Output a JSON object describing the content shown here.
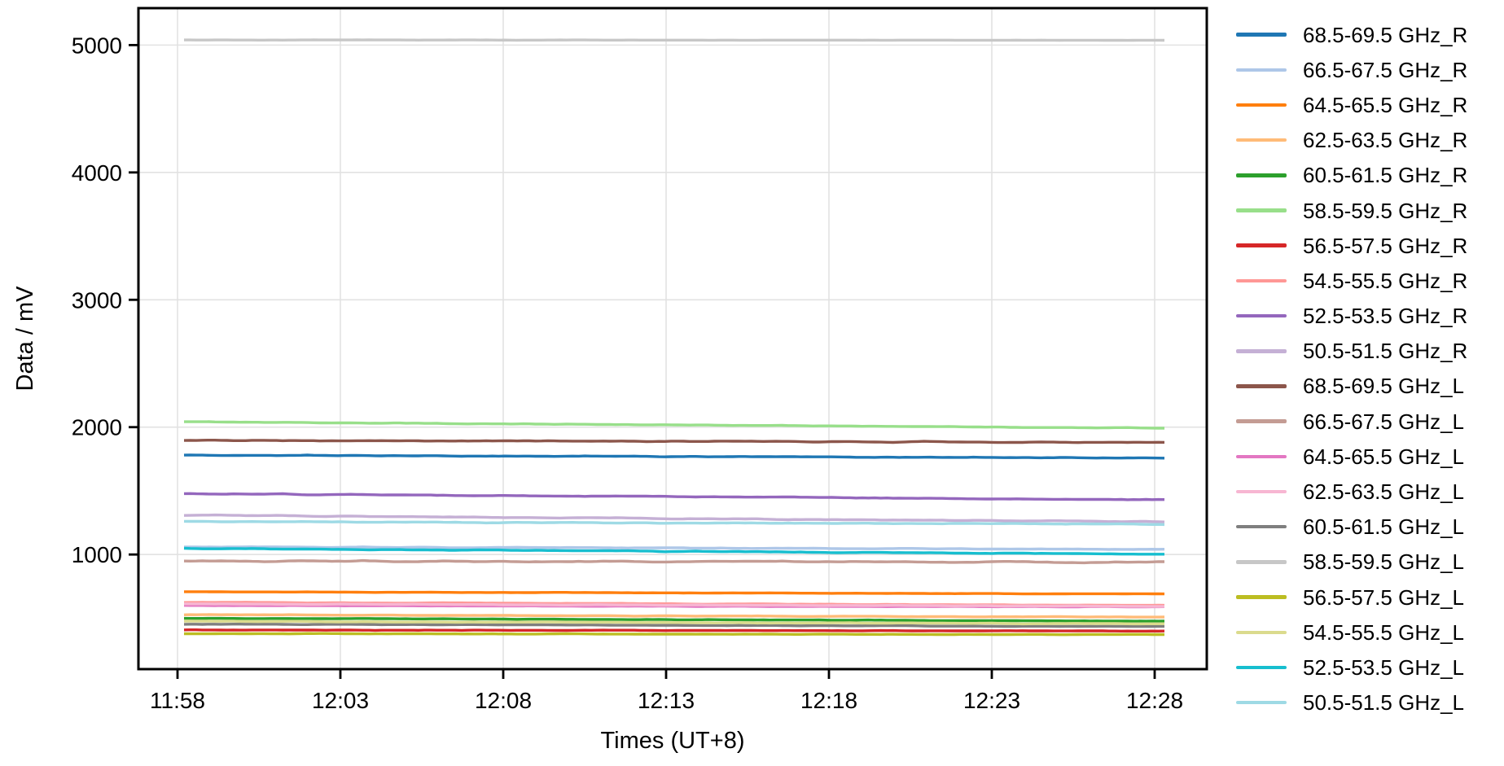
{
  "chart_data": {
    "type": "line",
    "title": "",
    "xlabel": "Times (UT+8)",
    "ylabel": "Data / mV",
    "grid": true,
    "legend_position": "right-outside",
    "x_tick_labels": [
      "11:58",
      "12:03",
      "12:08",
      "12:13",
      "12:18",
      "12:23",
      "12:28"
    ],
    "x_tick_minutes": [
      58,
      63,
      68,
      73,
      78,
      83,
      88
    ],
    "xlim_minutes": [
      56.8,
      89.6
    ],
    "x_data_range_minutes": [
      58.2,
      88.3
    ],
    "y_ticks": [
      1000,
      2000,
      3000,
      4000,
      5000
    ],
    "y_tick_labels": [
      "1000",
      "2000",
      "3000",
      "4000",
      "5000"
    ],
    "ylim": [
      100,
      5290
    ],
    "series": [
      {
        "name": "68.5-69.5 GHz_R",
        "color": "#1f77b4",
        "values_mV": {
          "start": 1780,
          "end": 1758
        }
      },
      {
        "name": "66.5-67.5 GHz_R",
        "color": "#aec7e8",
        "values_mV": {
          "start": 1062,
          "end": 1040
        }
      },
      {
        "name": "64.5-65.5 GHz_R",
        "color": "#ff7f0e",
        "values_mV": {
          "start": 707,
          "end": 690
        }
      },
      {
        "name": "62.5-63.5 GHz_R",
        "color": "#ffbb78",
        "values_mV": {
          "start": 528,
          "end": 508
        }
      },
      {
        "name": "60.5-61.5 GHz_R",
        "color": "#2ca02c",
        "values_mV": {
          "start": 500,
          "end": 477
        }
      },
      {
        "name": "58.5-59.5 GHz_R",
        "color": "#98df8a",
        "values_mV": {
          "start": 2042,
          "end": 1992
        }
      },
      {
        "name": "56.5-57.5 GHz_R",
        "color": "#d62728",
        "values_mV": {
          "start": 408,
          "end": 399
        }
      },
      {
        "name": "54.5-55.5 GHz_R",
        "color": "#ff9896",
        "values_mV": {
          "start": 625,
          "end": 600
        }
      },
      {
        "name": "52.5-53.5 GHz_R",
        "color": "#9467bd",
        "values_mV": {
          "start": 1478,
          "end": 1430
        }
      },
      {
        "name": "50.5-51.5 GHz_R",
        "color": "#c5b0d5",
        "values_mV": {
          "start": 1310,
          "end": 1256
        }
      },
      {
        "name": "68.5-69.5 GHz_L",
        "color": "#8c564b",
        "values_mV": {
          "start": 1898,
          "end": 1880
        }
      },
      {
        "name": "66.5-67.5 GHz_L",
        "color": "#c49c94",
        "values_mV": {
          "start": 950,
          "end": 940
        }
      },
      {
        "name": "64.5-65.5 GHz_L",
        "color": "#e377c2",
        "values_mV": {
          "start": 600,
          "end": 589
        }
      },
      {
        "name": "62.5-63.5 GHz_L",
        "color": "#f7b6d2",
        "values_mV": {
          "start": 612,
          "end": 594
        }
      },
      {
        "name": "60.5-61.5 GHz_L",
        "color": "#7f7f7f",
        "values_mV": {
          "start": 454,
          "end": 434
        }
      },
      {
        "name": "58.5-59.5 GHz_L",
        "color": "#c7c7c7",
        "values_mV": {
          "start": 5040,
          "end": 5038
        }
      },
      {
        "name": "56.5-57.5 GHz_L",
        "color": "#bcbd22",
        "values_mV": {
          "start": 379,
          "end": 371
        }
      },
      {
        "name": "54.5-55.5 GHz_L",
        "color": "#dbdb8d",
        "values_mV": {
          "start": 476,
          "end": 456
        }
      },
      {
        "name": "52.5-53.5 GHz_L",
        "color": "#17becf",
        "values_mV": {
          "start": 1048,
          "end": 1002
        }
      },
      {
        "name": "50.5-51.5 GHz_L",
        "color": "#9edae5",
        "values_mV": {
          "start": 1258,
          "end": 1238
        }
      }
    ],
    "colors": {
      "grid": "#e2e2e2",
      "spine": "#000000",
      "background": "#ffffff",
      "text": "#000000"
    }
  }
}
